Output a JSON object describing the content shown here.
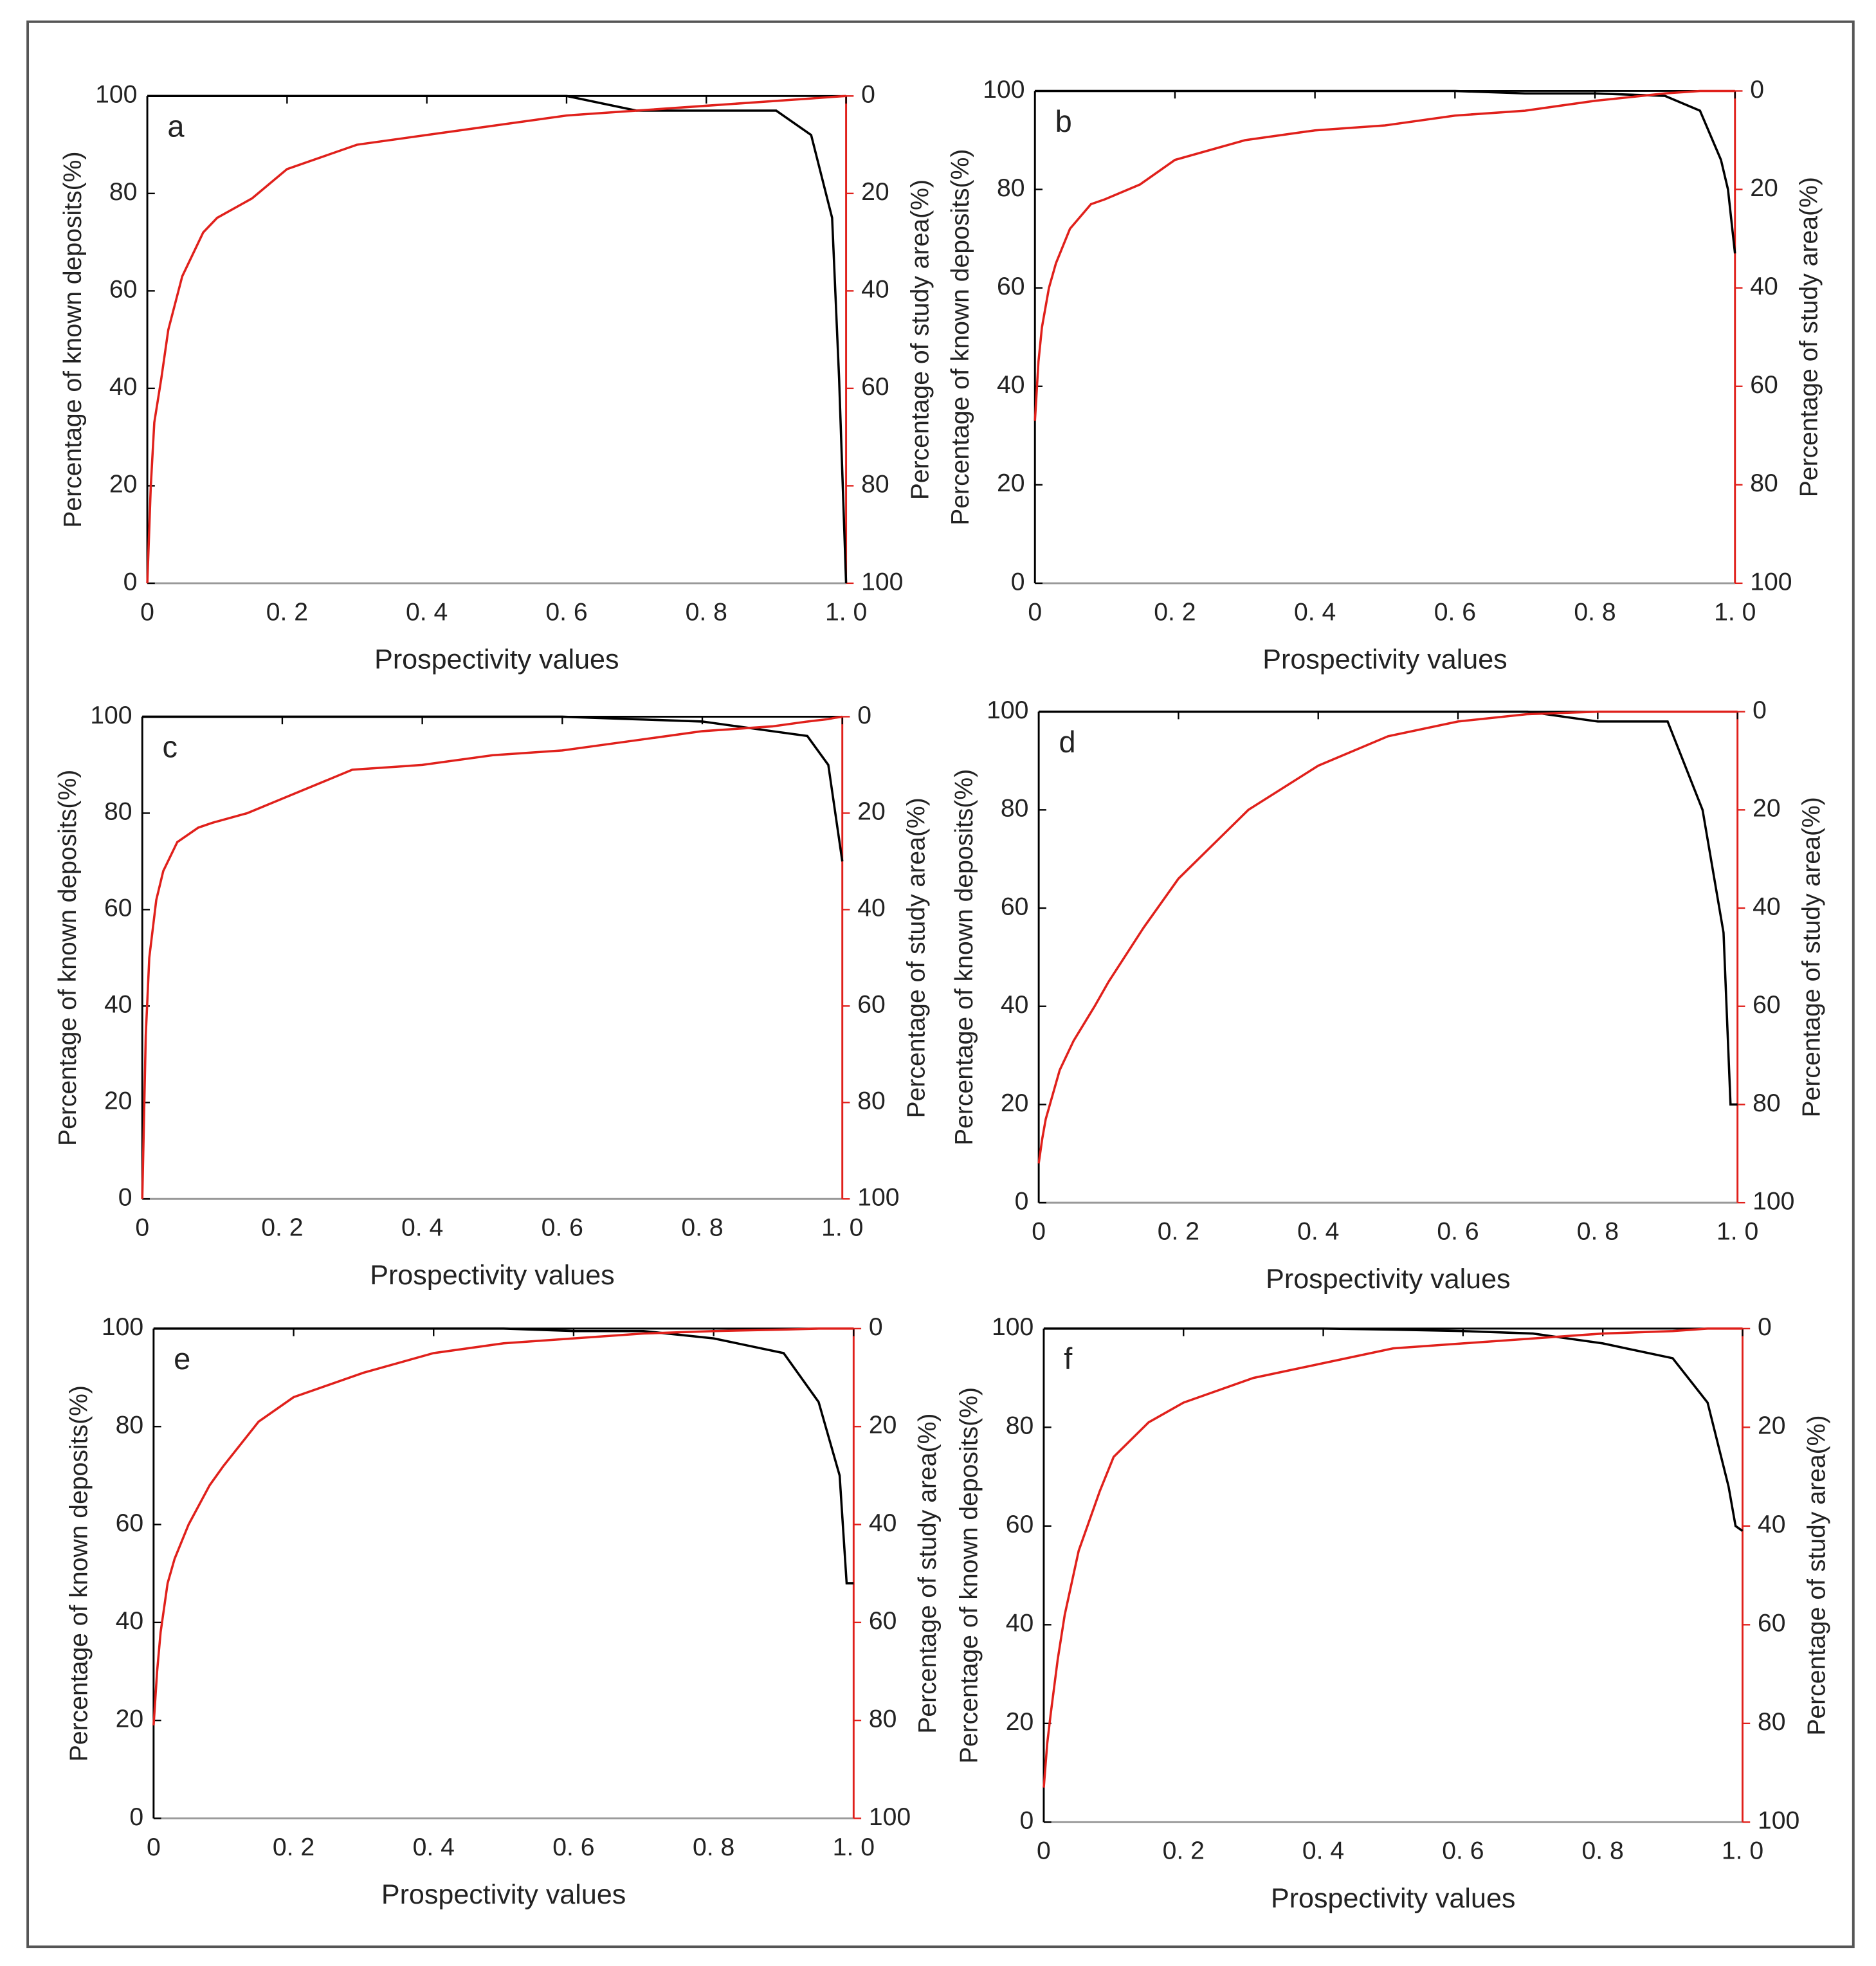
{
  "chart_data": [
    {
      "type": "line",
      "label": "a",
      "xlabel": "Prospectivity values",
      "ylabel": "Percentage of known deposits(%)",
      "y2label": "Percentage of study area(%)",
      "x": [
        0,
        0.005,
        0.01,
        0.02,
        0.03,
        0.05,
        0.08,
        0.1,
        0.15,
        0.2,
        0.3,
        0.4,
        0.5,
        0.6,
        0.7,
        0.8,
        0.9,
        0.95,
        0.98,
        0.99,
        1
      ],
      "xlim": [
        0,
        1
      ],
      "xticks": [
        0,
        {
          "value": 0.2,
          "label": "0. 2"
        },
        {
          "value": 0.4,
          "label": "0. 4"
        },
        {
          "value": 0.6,
          "label": "0. 6"
        },
        {
          "value": 0.8,
          "label": "0. 8"
        },
        {
          "value": 1,
          "label": "1. 0"
        }
      ],
      "ylim": [
        0,
        100
      ],
      "yticks": [
        0,
        20,
        40,
        60,
        80,
        100
      ],
      "y2lim": [
        100,
        0
      ],
      "y2ticks": [
        0,
        20,
        40,
        60,
        80,
        100
      ],
      "series": [
        {
          "color": "#000000",
          "values": [
            100,
            100,
            100,
            100,
            100,
            100,
            100,
            100,
            100,
            100,
            100,
            100,
            100,
            100,
            97,
            97,
            97,
            92,
            75,
            42,
            0
          ]
        },
        {
          "color": "#e0201b",
          "axis": "y2",
          "values": [
            100,
            80,
            67,
            58,
            48,
            37,
            28,
            25,
            21,
            15,
            10,
            8,
            6,
            4,
            3,
            2,
            1,
            0.5,
            0.2,
            0.1,
            0
          ]
        }
      ]
    },
    {
      "type": "line",
      "label": "b",
      "xlabel": "Prospectivity values",
      "ylabel": "Percentage of known deposits(%)",
      "y2label": "Percentage of study area(%)",
      "x": [
        0,
        0.005,
        0.01,
        0.02,
        0.03,
        0.05,
        0.08,
        0.1,
        0.15,
        0.2,
        0.3,
        0.4,
        0.5,
        0.6,
        0.7,
        0.8,
        0.9,
        0.95,
        0.98,
        0.99,
        1
      ],
      "xlim": [
        0,
        1
      ],
      "xticks": [
        0,
        {
          "value": 0.2,
          "label": "0. 2"
        },
        {
          "value": 0.4,
          "label": "0. 4"
        },
        {
          "value": 0.6,
          "label": "0. 6"
        },
        {
          "value": 0.8,
          "label": "0. 8"
        },
        {
          "value": 1,
          "label": "1. 0"
        }
      ],
      "ylim": [
        0,
        100
      ],
      "yticks": [
        0,
        20,
        40,
        60,
        80,
        100
      ],
      "y2lim": [
        100,
        0
      ],
      "y2ticks": [
        0,
        20,
        40,
        60,
        80,
        100
      ],
      "series": [
        {
          "color": "#000000",
          "values": [
            100,
            100,
            100,
            100,
            100,
            100,
            100,
            100,
            100,
            100,
            100,
            100,
            100,
            100,
            99.5,
            99.5,
            99,
            96,
            86,
            80,
            67
          ]
        },
        {
          "color": "#e0201b",
          "axis": "y2",
          "values": [
            67,
            55,
            48,
            40,
            35,
            28,
            23,
            22,
            19,
            14,
            10,
            8,
            7,
            5,
            4,
            2,
            0.5,
            0,
            0,
            0,
            0
          ]
        }
      ]
    },
    {
      "type": "line",
      "label": "c",
      "xlabel": "Prospectivity values",
      "ylabel": "Percentage of known deposits(%)",
      "y2label": "Percentage of study area(%)",
      "x": [
        0,
        0.005,
        0.01,
        0.02,
        0.03,
        0.05,
        0.08,
        0.1,
        0.15,
        0.2,
        0.3,
        0.4,
        0.5,
        0.6,
        0.7,
        0.8,
        0.9,
        0.95,
        0.98,
        0.99,
        1
      ],
      "xlim": [
        0,
        1
      ],
      "xticks": [
        0,
        {
          "value": 0.2,
          "label": "0. 2"
        },
        {
          "value": 0.4,
          "label": "0. 4"
        },
        {
          "value": 0.6,
          "label": "0. 6"
        },
        {
          "value": 0.8,
          "label": "0. 8"
        },
        {
          "value": 1,
          "label": "1. 0"
        }
      ],
      "ylim": [
        0,
        100
      ],
      "yticks": [
        0,
        20,
        40,
        60,
        80,
        100
      ],
      "y2lim": [
        100,
        0
      ],
      "y2ticks": [
        0,
        20,
        40,
        60,
        80,
        100
      ],
      "series": [
        {
          "color": "#000000",
          "values": [
            100,
            100,
            100,
            100,
            100,
            100,
            100,
            100,
            100,
            100,
            100,
            100,
            100,
            100,
            99.5,
            99,
            97,
            96,
            90,
            80,
            70
          ]
        },
        {
          "color": "#e0201b",
          "axis": "y2",
          "values": [
            100,
            66,
            50,
            38,
            32,
            26,
            23,
            22,
            20,
            17,
            11,
            10,
            8,
            7,
            5,
            3,
            2,
            1,
            0.5,
            0.2,
            0
          ]
        }
      ]
    },
    {
      "type": "line",
      "label": "d",
      "xlabel": "Prospectivity values",
      "ylabel": "Percentage of known deposits(%)",
      "y2label": "Percentage of study area(%)",
      "x": [
        0,
        0.005,
        0.01,
        0.02,
        0.03,
        0.05,
        0.08,
        0.1,
        0.15,
        0.2,
        0.3,
        0.4,
        0.5,
        0.6,
        0.7,
        0.8,
        0.9,
        0.95,
        0.98,
        0.99,
        1
      ],
      "xlim": [
        0,
        1
      ],
      "xticks": [
        0,
        {
          "value": 0.2,
          "label": "0. 2"
        },
        {
          "value": 0.4,
          "label": "0. 4"
        },
        {
          "value": 0.6,
          "label": "0. 6"
        },
        {
          "value": 0.8,
          "label": "0. 8"
        },
        {
          "value": 1,
          "label": "1. 0"
        }
      ],
      "ylim": [
        0,
        100
      ],
      "yticks": [
        0,
        20,
        40,
        60,
        80,
        100
      ],
      "y2lim": [
        100,
        0
      ],
      "y2ticks": [
        0,
        20,
        40,
        60,
        80,
        100
      ],
      "series": [
        {
          "color": "#000000",
          "values": [
            100,
            100,
            100,
            100,
            100,
            100,
            100,
            100,
            100,
            100,
            100,
            100,
            100,
            100,
            100,
            98,
            98,
            80,
            55,
            20,
            20
          ]
        },
        {
          "color": "#e0201b",
          "axis": "y2",
          "values": [
            92,
            87,
            83,
            78,
            73,
            67,
            60,
            55,
            44,
            34,
            20,
            11,
            5,
            2,
            0.5,
            0,
            0,
            0,
            0,
            0,
            0
          ]
        }
      ]
    },
    {
      "type": "line",
      "label": "e",
      "xlabel": "Prospectivity values",
      "ylabel": "Percentage of known deposits(%)",
      "y2label": "Percentage of study area(%)",
      "x": [
        0,
        0.005,
        0.01,
        0.02,
        0.03,
        0.05,
        0.08,
        0.1,
        0.15,
        0.2,
        0.3,
        0.4,
        0.5,
        0.6,
        0.7,
        0.8,
        0.9,
        0.95,
        0.98,
        0.99,
        1
      ],
      "xlim": [
        0,
        1
      ],
      "xticks": [
        0,
        {
          "value": 0.2,
          "label": "0. 2"
        },
        {
          "value": 0.4,
          "label": "0. 4"
        },
        {
          "value": 0.6,
          "label": "0. 6"
        },
        {
          "value": 0.8,
          "label": "0. 8"
        },
        {
          "value": 1,
          "label": "1. 0"
        }
      ],
      "ylim": [
        0,
        100
      ],
      "yticks": [
        0,
        20,
        40,
        60,
        80,
        100
      ],
      "y2lim": [
        100,
        0
      ],
      "y2ticks": [
        0,
        20,
        40,
        60,
        80,
        100
      ],
      "series": [
        {
          "color": "#000000",
          "values": [
            100,
            100,
            100,
            100,
            100,
            100,
            100,
            100,
            100,
            100,
            100,
            100,
            100,
            99.5,
            99.5,
            98,
            95,
            85,
            70,
            48,
            48
          ]
        },
        {
          "color": "#e0201b",
          "axis": "y2",
          "values": [
            81,
            70,
            62,
            52,
            47,
            40,
            32,
            28,
            19,
            14,
            9,
            5,
            3,
            2,
            1,
            0.5,
            0.2,
            0,
            0,
            0,
            0
          ]
        }
      ]
    },
    {
      "type": "line",
      "label": "f",
      "xlabel": "Prospectivity values",
      "ylabel": "Percentage of known deposits(%)",
      "y2label": "Percentage of study area(%)",
      "x": [
        0,
        0.005,
        0.01,
        0.02,
        0.03,
        0.05,
        0.08,
        0.1,
        0.15,
        0.2,
        0.3,
        0.4,
        0.5,
        0.6,
        0.7,
        0.8,
        0.9,
        0.95,
        0.98,
        0.99,
        1
      ],
      "xlim": [
        0,
        1
      ],
      "xticks": [
        0,
        {
          "value": 0.2,
          "label": "0. 2"
        },
        {
          "value": 0.4,
          "label": "0. 4"
        },
        {
          "value": 0.6,
          "label": "0. 6"
        },
        {
          "value": 0.8,
          "label": "0. 8"
        },
        {
          "value": 1,
          "label": "1. 0"
        }
      ],
      "ylim": [
        0,
        100
      ],
      "yticks": [
        0,
        20,
        40,
        60,
        80,
        100
      ],
      "y2lim": [
        100,
        0
      ],
      "y2ticks": [
        0,
        20,
        40,
        60,
        80,
        100
      ],
      "series": [
        {
          "color": "#000000",
          "values": [
            100,
            100,
            100,
            100,
            100,
            100,
            100,
            100,
            100,
            100,
            100,
            100,
            99.8,
            99.5,
            99,
            97,
            94,
            85,
            68,
            60,
            59
          ]
        },
        {
          "color": "#e0201b",
          "axis": "y2",
          "values": [
            93,
            84,
            78,
            67,
            58,
            45,
            33,
            26,
            19,
            15,
            10,
            7,
            4,
            3,
            2,
            1,
            0.5,
            0,
            0,
            0,
            0
          ]
        }
      ]
    }
  ]
}
